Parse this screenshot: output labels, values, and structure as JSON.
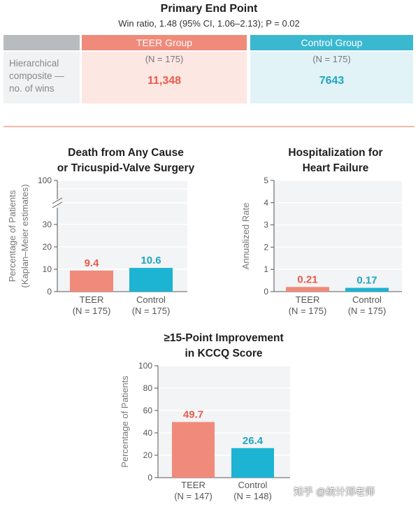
{
  "primary": {
    "title": "Primary End Point",
    "subtitle": "Win ratio, 1.48 (95% CI, 1.06–2.13); P = 0.02",
    "row_label_lines": [
      "Hierarchical",
      "composite —",
      "no. of wins"
    ],
    "teer": {
      "header": "TEER Group",
      "n": "(N = 175)",
      "wins": "11,348"
    },
    "control": {
      "header": "Control Group",
      "n": "(N = 175)",
      "wins": "7643"
    }
  },
  "colors": {
    "teer": "#f08a7a",
    "control": "#1cb4d2",
    "teer_text": "#e85c4d",
    "control_text": "#1ea6c2",
    "plot_bg": "#f3f4f5"
  },
  "chart_data": [
    {
      "type": "bar",
      "title_lines": [
        "Death from Any Cause",
        "or Tricuspid-Valve Surgery"
      ],
      "ylabel_lines": [
        "Percentage of Patients",
        "(Kaplan–Meier estimates)"
      ],
      "yticks": [
        0,
        10,
        20,
        30,
        100
      ],
      "axis_break": true,
      "categories": [
        "TEER",
        "Control"
      ],
      "category_sublabels": [
        "(N = 175)",
        "(N = 175)"
      ],
      "values": [
        9.4,
        10.6
      ],
      "value_labels": [
        "9.4",
        "10.6"
      ],
      "grid": true
    },
    {
      "type": "bar",
      "title_lines": [
        "Hospitalization for",
        "Heart Failure"
      ],
      "ylabel_lines": [
        "Annualized Rate"
      ],
      "yticks": [
        0,
        1,
        2,
        3,
        4,
        5
      ],
      "ylim": [
        0,
        5
      ],
      "categories": [
        "TEER",
        "Control"
      ],
      "category_sublabels": [
        "(N = 175)",
        "(N = 175)"
      ],
      "values": [
        0.21,
        0.17
      ],
      "value_labels": [
        "0.21",
        "0.17"
      ],
      "grid": true
    },
    {
      "type": "bar",
      "title_lines": [
        "≥15-Point Improvement",
        "in KCCQ Score"
      ],
      "ylabel_lines": [
        "Percentage of Patients"
      ],
      "yticks": [
        0,
        20,
        40,
        60,
        80,
        100
      ],
      "ylim": [
        0,
        100
      ],
      "categories": [
        "TEER",
        "Control"
      ],
      "category_sublabels": [
        "(N = 147)",
        "(N = 148)"
      ],
      "values": [
        49.7,
        26.4
      ],
      "value_labels": [
        "49.7",
        "26.4"
      ],
      "grid": true
    }
  ],
  "watermark": "知乎 @统计郑老师"
}
